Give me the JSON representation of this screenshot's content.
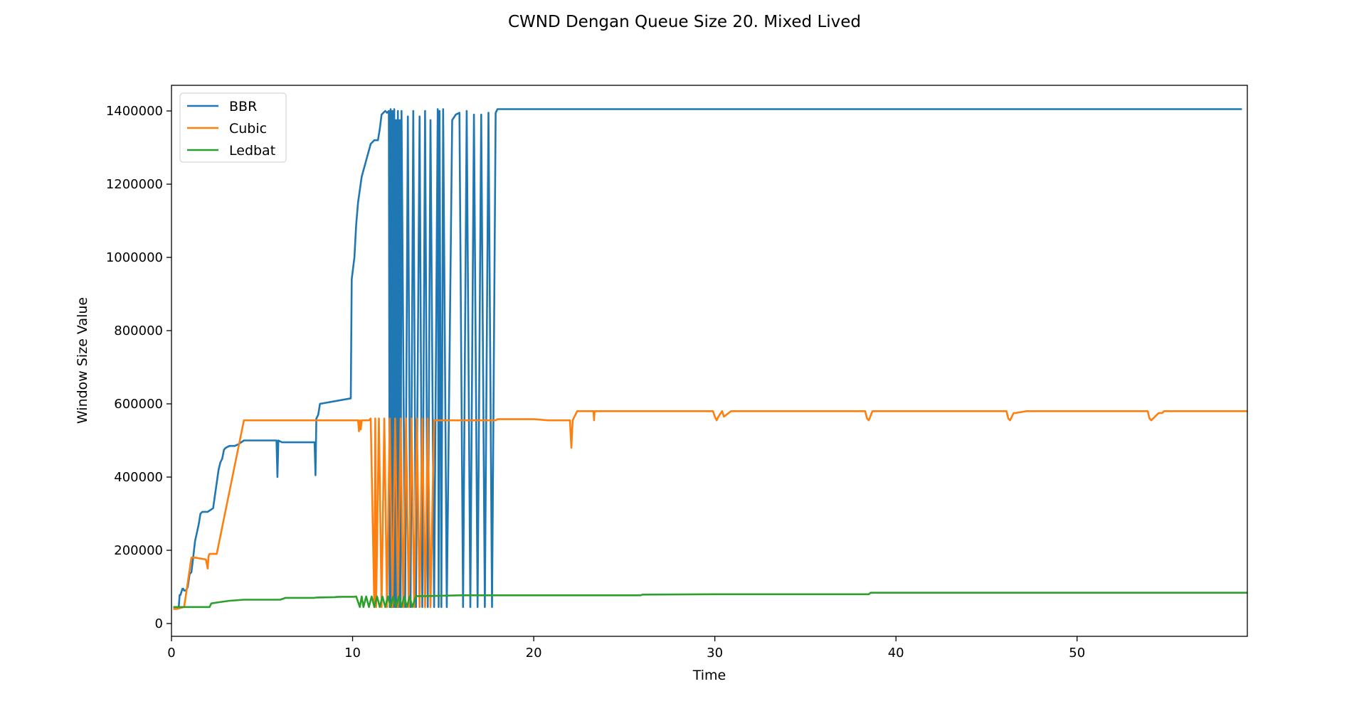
{
  "chart_data": {
    "type": "line",
    "title": "CWND Dengan Queue Size 20. Mixed Lived",
    "xlabel": "Time",
    "ylabel": "Window Size Value",
    "xlim": [
      0,
      59.4
    ],
    "ylim": [
      -35000,
      1470000
    ],
    "xticks": [
      0,
      10,
      20,
      30,
      40,
      50
    ],
    "xtick_labels": [
      "0",
      "10",
      "20",
      "30",
      "40",
      "50"
    ],
    "yticks": [
      0,
      200000,
      400000,
      600000,
      800000,
      1000000,
      1200000,
      1400000
    ],
    "ytick_labels": [
      "0",
      "200000",
      "400000",
      "600000",
      "800000",
      "1000000",
      "1200000",
      "1400000"
    ],
    "grid": false,
    "legend_position": "top-left",
    "series": [
      {
        "name": "BBR",
        "color": "#1f77b4",
        "x": [
          0.1,
          0.4,
          0.45,
          0.5,
          0.6,
          0.65,
          0.7,
          0.8,
          0.9,
          1.0,
          1.1,
          1.2,
          1.3,
          1.5,
          1.6,
          1.7,
          1.8,
          1.9,
          2.0,
          2.3,
          2.6,
          2.7,
          2.8,
          2.9,
          3.0,
          3.2,
          3.5,
          3.7,
          4.0,
          5.0,
          5.8,
          5.85,
          5.9,
          6.1,
          7.9,
          7.95,
          8.0,
          8.1,
          8.2,
          9.9,
          9.95,
          10.1,
          10.2,
          10.3,
          10.5,
          11.0,
          11.2,
          11.4,
          11.5,
          11.6,
          11.8,
          11.9,
          12.0,
          12.05,
          12.1,
          12.15,
          12.2,
          12.25,
          12.3,
          12.35,
          12.4,
          12.45,
          12.5,
          12.55,
          12.6,
          12.65,
          12.7,
          12.9,
          13.05,
          13.2,
          13.35,
          13.5,
          13.7,
          13.85,
          14.0,
          14.15,
          14.3,
          14.5,
          14.7,
          14.75,
          14.8,
          14.9,
          15.0,
          15.2,
          15.5,
          15.7,
          15.9,
          16.1,
          16.3,
          16.5,
          16.7,
          16.9,
          17.1,
          17.3,
          17.5,
          17.7,
          17.9,
          18.0,
          30.0,
          45.0,
          59.1
        ],
        "y": [
          45000,
          45000,
          78000,
          78000,
          95000,
          95000,
          90000,
          90000,
          100000,
          135000,
          140000,
          180000,
          225000,
          270000,
          300000,
          305000,
          305000,
          305000,
          305000,
          315000,
          420000,
          440000,
          450000,
          475000,
          480000,
          485000,
          485000,
          490000,
          500000,
          500000,
          500000,
          400000,
          500000,
          495000,
          495000,
          405000,
          560000,
          570000,
          600000,
          615000,
          940000,
          1000000,
          1090000,
          1150000,
          1220000,
          1310000,
          1320000,
          1320000,
          1350000,
          1390000,
          1400000,
          1395000,
          1400000,
          45000,
          1405000,
          45000,
          1400000,
          45000,
          1405000,
          45000,
          1375000,
          45000,
          1400000,
          45000,
          1375000,
          45000,
          1400000,
          45000,
          1385000,
          45000,
          1400000,
          45000,
          1385000,
          45000,
          1400000,
          45000,
          1375000,
          45000,
          1405000,
          45000,
          1400000,
          45000,
          1405000,
          45000,
          1375000,
          1390000,
          1395000,
          45000,
          1400000,
          45000,
          1390000,
          45000,
          1390000,
          45000,
          1395000,
          45000,
          1395000,
          1405000,
          1405000,
          1405000,
          1405000
        ]
      },
      {
        "name": "Cubic",
        "color": "#ff7f0e",
        "x": [
          0.1,
          0.3,
          0.7,
          1.1,
          1.3,
          1.9,
          2.0,
          2.05,
          2.1,
          2.3,
          2.5,
          4.0,
          6.0,
          8.0,
          10.0,
          10.3,
          10.35,
          10.4,
          10.45,
          10.5,
          10.9,
          11.0,
          11.2,
          11.25,
          11.3,
          11.45,
          11.6,
          11.75,
          11.9,
          12.05,
          12.2,
          12.35,
          12.5,
          12.65,
          12.8,
          12.95,
          13.1,
          13.25,
          13.4,
          13.55,
          13.7,
          13.85,
          14.0,
          14.15,
          14.3,
          14.5,
          16.0,
          17.9,
          18.0,
          20.0,
          20.8,
          22.0,
          22.08,
          22.15,
          22.4,
          22.6,
          23.3,
          23.33,
          23.36,
          23.5,
          26.0,
          29.9,
          30.0,
          30.1,
          30.2,
          30.4,
          30.5,
          30.9,
          31.0,
          35.0,
          38.3,
          38.4,
          38.5,
          38.7,
          38.8,
          39.4,
          39.5,
          42.0,
          46.1,
          46.2,
          46.3,
          46.5,
          46.6,
          47.2,
          47.3,
          50.0,
          53.9,
          54.0,
          54.1,
          54.3,
          54.5,
          54.7,
          54.8,
          55.0,
          59.4
        ],
        "y": [
          40000,
          40000,
          45000,
          180000,
          180000,
          175000,
          150000,
          185000,
          190000,
          190000,
          190000,
          555000,
          555000,
          555000,
          555000,
          555000,
          525000,
          555000,
          530000,
          555000,
          555000,
          560000,
          45000,
          560000,
          45000,
          560000,
          45000,
          560000,
          45000,
          560000,
          45000,
          560000,
          45000,
          560000,
          45000,
          560000,
          45000,
          560000,
          45000,
          560000,
          45000,
          560000,
          45000,
          560000,
          45000,
          555000,
          555000,
          555000,
          558000,
          558000,
          555000,
          555000,
          480000,
          555000,
          580000,
          580000,
          580000,
          555000,
          580000,
          580000,
          580000,
          580000,
          565000,
          555000,
          565000,
          580000,
          565000,
          580000,
          580000,
          580000,
          580000,
          560000,
          555000,
          580000,
          580000,
          580000,
          580000,
          580000,
          580000,
          560000,
          555000,
          575000,
          575000,
          580000,
          580000,
          580000,
          580000,
          560000,
          555000,
          565000,
          575000,
          575000,
          580000,
          580000,
          580000
        ]
      },
      {
        "name": "Ledbat",
        "color": "#2ca02c",
        "x": [
          0.1,
          0.3,
          2.1,
          2.2,
          2.6,
          3.2,
          4.0,
          6.0,
          6.3,
          7.9,
          8.0,
          9.0,
          9.2,
          10.1,
          10.2,
          10.4,
          10.5,
          10.6,
          10.75,
          10.9,
          11.05,
          11.2,
          11.35,
          11.5,
          11.65,
          11.8,
          11.95,
          12.1,
          12.25,
          12.4,
          12.55,
          12.7,
          12.85,
          13.0,
          13.15,
          13.3,
          13.5,
          14.0,
          16.0,
          20.0,
          25.9,
          26.0,
          30.0,
          38.5,
          38.6,
          45.0,
          59.4
        ],
        "y": [
          45000,
          45000,
          45000,
          55000,
          58000,
          62000,
          65000,
          65000,
          70000,
          70000,
          71000,
          72000,
          73000,
          73000,
          74000,
          45000,
          74000,
          45000,
          74000,
          45000,
          74000,
          45000,
          74000,
          45000,
          74000,
          45000,
          74000,
          45000,
          74000,
          45000,
          74000,
          45000,
          74000,
          45000,
          74000,
          45000,
          75000,
          75000,
          77000,
          77000,
          77000,
          79000,
          80000,
          80000,
          84000,
          84000,
          84000
        ]
      }
    ]
  }
}
